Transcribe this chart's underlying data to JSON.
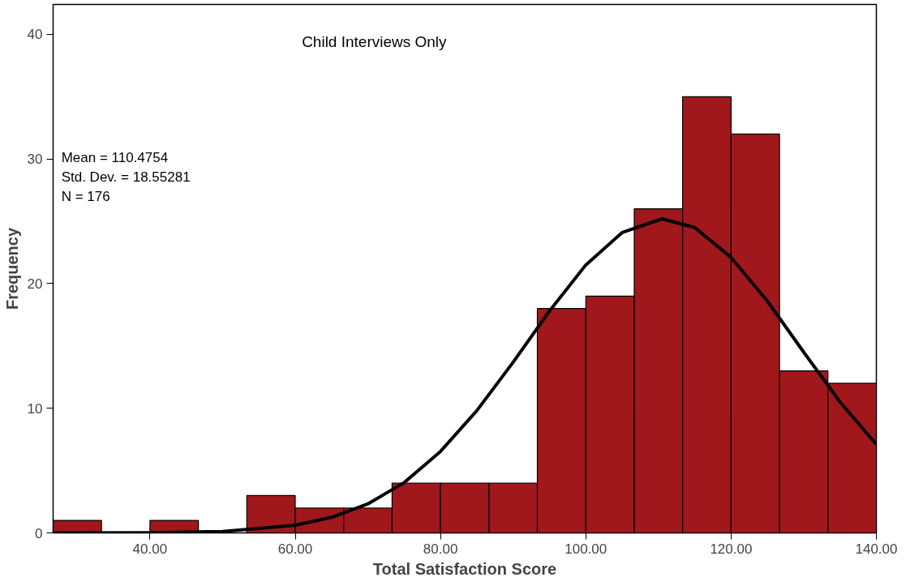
{
  "chart_data": {
    "type": "histogram",
    "xlabel": "Total Satisfaction Score",
    "ylabel": "Frequency",
    "bins": [
      26.67,
      33.33,
      40,
      46.67,
      53.33,
      60,
      66.67,
      73.33,
      80,
      86.67,
      93.33,
      100,
      106.67,
      113.33,
      120,
      126.67,
      133.33,
      140
    ],
    "values": [
      1,
      0,
      1,
      0,
      3,
      2,
      2,
      4,
      4,
      4,
      18,
      19,
      26,
      35,
      32,
      13,
      12
    ],
    "color": "#a0181c",
    "series": [
      {
        "type": "line",
        "color": "#000000",
        "x": [
          26.67,
          40,
          50,
          60,
          65,
          70,
          75,
          80,
          85,
          90,
          95,
          100,
          105,
          110.5,
          115,
          120,
          125,
          130,
          135,
          140
        ],
        "values": [
          0.0,
          0.02,
          0.12,
          0.62,
          1.25,
          2.33,
          4.04,
          6.54,
          9.81,
          13.7,
          17.8,
          21.5,
          24.1,
          25.2,
          24.5,
          22.1,
          18.6,
          14.5,
          10.5,
          7.1
        ]
      }
    ],
    "xlim": [
      26.67,
      140
    ],
    "ylim": [
      0,
      42.4
    ],
    "xticks": [
      {
        "value": 40,
        "label": "40.00"
      },
      {
        "value": 60,
        "label": "60.00"
      },
      {
        "value": 80,
        "label": "80.00"
      },
      {
        "value": 100,
        "label": "100.00"
      },
      {
        "value": 120,
        "label": "120.00"
      },
      {
        "value": 140,
        "label": "140.00"
      }
    ],
    "yticks": [
      0,
      10,
      20,
      30,
      40
    ],
    "grid": false,
    "annotations": [
      "Child Interviews Only",
      "Mean = 110.4754",
      "Std. Dev. = 18.55281",
      "N = 176"
    ]
  }
}
